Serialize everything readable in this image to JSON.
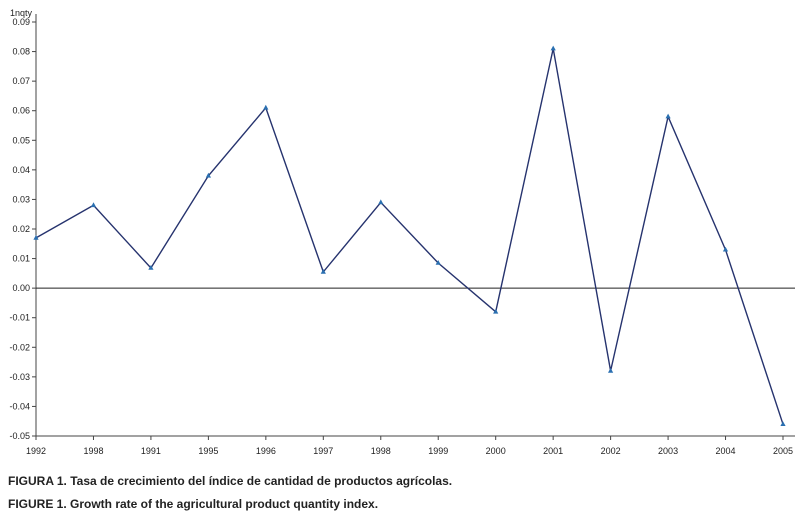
{
  "chart_data": {
    "type": "line",
    "ylabel": "1nqty",
    "x": [
      "1992",
      "1998",
      "1991",
      "1995",
      "1996",
      "1997",
      "1998",
      "1999",
      "2000",
      "2001",
      "2002",
      "2003",
      "2004",
      "2005"
    ],
    "series": [
      {
        "values": [
          0.017,
          0.028,
          0.0068,
          0.038,
          0.061,
          0.0055,
          0.029,
          0.0085,
          -0.008,
          0.081,
          -0.028,
          0.058,
          0.013,
          -0.046
        ]
      }
    ],
    "yticks": [
      "0.09",
      "0.08",
      "0.07",
      "0.06",
      "0.05",
      "0.04",
      "0.03",
      "0.02",
      "0.01",
      "0.00",
      "-0.01",
      "-0.02",
      "-0.03",
      "-0.04",
      "-0.05"
    ],
    "ylim": [
      -0.05,
      0.09
    ],
    "zero_line": true,
    "grid": false,
    "line_color": "#26336e",
    "marker_color": "#2a6fb0"
  },
  "captions": {
    "spanish": "FIGURA 1. Tasa de crecimiento del índice de cantidad de productos agrícolas.",
    "english": "FIGURE 1. Growth rate of the agricultural product quantity index."
  }
}
